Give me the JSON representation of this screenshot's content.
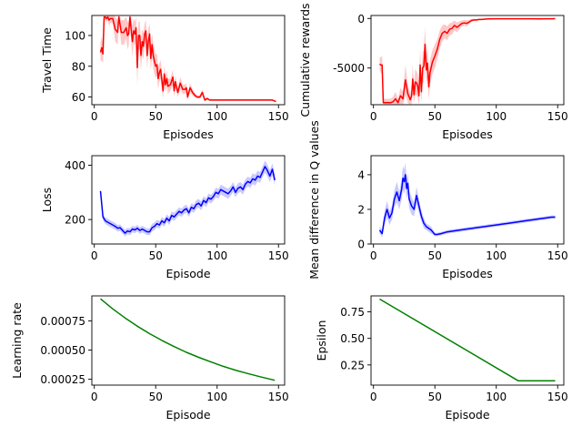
{
  "chart_data": [
    {
      "type": "line",
      "xlabel": "Episodes",
      "ylabel": "Travel Time",
      "xlim": [
        -2,
        155
      ],
      "ylim": [
        55,
        113
      ],
      "xticks": [
        0,
        50,
        100,
        150
      ],
      "yticks": [
        60,
        80,
        100
      ],
      "color": "#ff0000",
      "band_color": "#ffb6b6",
      "series": [
        {
          "x": [
            5,
            6,
            7,
            8,
            9,
            10,
            11,
            12,
            13,
            15,
            17,
            19,
            20,
            22,
            24,
            26,
            27,
            28,
            29,
            30,
            31,
            32,
            33,
            34,
            35,
            36,
            37,
            38,
            39,
            40,
            41,
            42,
            43,
            44,
            45,
            46,
            47,
            48,
            49,
            50,
            51,
            52,
            53,
            54,
            55,
            56,
            57,
            58,
            59,
            60,
            62,
            64,
            65,
            66,
            68,
            70,
            72,
            74,
            75,
            76,
            78,
            80,
            82,
            84,
            86,
            88,
            90,
            92,
            94,
            96,
            98,
            100,
            105,
            110,
            115,
            120,
            125,
            130,
            135,
            140,
            145,
            148
          ],
          "y": [
            89,
            92,
            88,
            112,
            112,
            111,
            112,
            110,
            111,
            111,
            104,
            102,
            112,
            102,
            102,
            105,
            100,
            101,
            112,
            104,
            96,
            103,
            101,
            105,
            79,
            100,
            100,
            87,
            96,
            93,
            101,
            103,
            87,
            96,
            101,
            85,
            94,
            87,
            83,
            80,
            81,
            72,
            76,
            78,
            71,
            64,
            75,
            68,
            72,
            67,
            68,
            73,
            64,
            70,
            63,
            69,
            65,
            65,
            66,
            60,
            66,
            63,
            61,
            60,
            60,
            63,
            58,
            59,
            58,
            58,
            58,
            58,
            58,
            58,
            58,
            58,
            58,
            58,
            58,
            58,
            58,
            57
          ],
          "spread": [
            6,
            8,
            6,
            2,
            2,
            2,
            2,
            4,
            3,
            3,
            8,
            8,
            2,
            8,
            8,
            7,
            9,
            8,
            2,
            8,
            10,
            8,
            8,
            7,
            12,
            9,
            9,
            10,
            8,
            9,
            7,
            7,
            9,
            8,
            7,
            8,
            7,
            8,
            8,
            8,
            7,
            7,
            6,
            6,
            6,
            5,
            6,
            5,
            5,
            5,
            4,
            5,
            4,
            4,
            3,
            4,
            3,
            3,
            3,
            2,
            3,
            2,
            1.5,
            1,
            1,
            2,
            1,
            1,
            0.5,
            0.5,
            0.5,
            0.5,
            0.5,
            0.5,
            0.5,
            0.5,
            0.5,
            0.5,
            0.5,
            0.5,
            0.5,
            0.5
          ]
        }
      ]
    },
    {
      "type": "line",
      "xlabel": "Episodes",
      "ylabel": "Cumulative rewards",
      "xlim": [
        -2,
        155
      ],
      "ylim": [
        -8700,
        300
      ],
      "xticks": [
        0,
        50,
        100,
        150
      ],
      "yticks": [
        -5000,
        0
      ],
      "color": "#ff0000",
      "band_color": "#ffb6b6",
      "series": [
        {
          "x": [
            5,
            6,
            7,
            8,
            9,
            10,
            12,
            14,
            16,
            18,
            20,
            22,
            24,
            26,
            28,
            30,
            31,
            32,
            33,
            34,
            35,
            36,
            37,
            38,
            39,
            40,
            41,
            42,
            43,
            44,
            45,
            46,
            48,
            50,
            52,
            54,
            56,
            58,
            60,
            62,
            64,
            66,
            68,
            70,
            72,
            74,
            76,
            78,
            80,
            82,
            84,
            86,
            88,
            90,
            92,
            94,
            96,
            98,
            100,
            105,
            110,
            115,
            120,
            125,
            130,
            135,
            140,
            145,
            148
          ],
          "y": [
            -4600,
            -4700,
            -4700,
            -8500,
            -8500,
            -8500,
            -8500,
            -8500,
            -8400,
            -8100,
            -8500,
            -7800,
            -8100,
            -6200,
            -7600,
            -8200,
            -7800,
            -6100,
            -7700,
            -6400,
            -6500,
            -6800,
            -7800,
            -4700,
            -7400,
            -5000,
            -4800,
            -2600,
            -5200,
            -4500,
            -6900,
            -5500,
            -4400,
            -3800,
            -3100,
            -2100,
            -1500,
            -1300,
            -1500,
            -1100,
            -1000,
            -700,
            -900,
            -700,
            -500,
            -450,
            -500,
            -350,
            -200,
            -150,
            -150,
            -100,
            -100,
            -80,
            -60,
            -40,
            -40,
            -30,
            -30,
            -30,
            -30,
            -30,
            -30,
            -30,
            -30,
            -40,
            -30,
            -30,
            -20
          ],
          "spread": [
            600,
            800,
            900,
            400,
            400,
            400,
            400,
            400,
            500,
            700,
            400,
            800,
            700,
            1500,
            900,
            600,
            800,
            1500,
            800,
            1300,
            1200,
            1200,
            900,
            1700,
            1100,
            1600,
            1600,
            1800,
            1500,
            1500,
            1300,
            1300,
            1200,
            1200,
            1000,
            900,
            800,
            700,
            700,
            600,
            600,
            500,
            500,
            400,
            300,
            300,
            300,
            200,
            150,
            100,
            100,
            80,
            80,
            60,
            50,
            40,
            40,
            30,
            20,
            20,
            20,
            20,
            20,
            20,
            20,
            20,
            20,
            20,
            20
          ]
        }
      ]
    },
    {
      "type": "line",
      "xlabel": "Episode",
      "ylabel": "Loss",
      "xlim": [
        -2,
        155
      ],
      "ylim": [
        110,
        435
      ],
      "xticks": [
        0,
        50,
        100,
        150
      ],
      "yticks": [
        200,
        400
      ],
      "color": "#0000ff",
      "band_color": "#b8b8ff",
      "series": [
        {
          "x": [
            5,
            7,
            9,
            11,
            13,
            15,
            17,
            19,
            21,
            23,
            25,
            27,
            29,
            31,
            33,
            35,
            37,
            39,
            41,
            43,
            45,
            47,
            49,
            51,
            53,
            55,
            57,
            59,
            61,
            63,
            65,
            67,
            69,
            71,
            73,
            75,
            77,
            79,
            81,
            83,
            85,
            87,
            89,
            91,
            93,
            95,
            97,
            99,
            101,
            103,
            105,
            107,
            109,
            111,
            113,
            115,
            117,
            119,
            121,
            123,
            125,
            127,
            129,
            131,
            133,
            135,
            137,
            139,
            141,
            143,
            145,
            147
          ],
          "y": [
            305,
            210,
            195,
            190,
            185,
            180,
            175,
            168,
            170,
            160,
            150,
            158,
            155,
            165,
            162,
            168,
            160,
            165,
            160,
            155,
            155,
            170,
            175,
            185,
            180,
            195,
            188,
            205,
            195,
            215,
            210,
            220,
            230,
            225,
            235,
            240,
            225,
            245,
            240,
            255,
            260,
            250,
            270,
            262,
            280,
            275,
            285,
            300,
            295,
            310,
            305,
            300,
            295,
            305,
            320,
            300,
            315,
            320,
            310,
            330,
            340,
            335,
            350,
            345,
            360,
            355,
            375,
            395,
            380,
            360,
            385,
            345
          ],
          "spread": [
            8,
            12,
            12,
            12,
            12,
            12,
            12,
            12,
            12,
            12,
            12,
            12,
            12,
            12,
            12,
            12,
            12,
            12,
            12,
            12,
            12,
            14,
            14,
            14,
            14,
            14,
            14,
            14,
            15,
            15,
            15,
            15,
            15,
            15,
            15,
            15,
            15,
            15,
            15,
            16,
            16,
            16,
            16,
            16,
            16,
            16,
            16,
            18,
            18,
            18,
            18,
            18,
            18,
            18,
            18,
            18,
            18,
            18,
            18,
            18,
            18,
            18,
            20,
            20,
            20,
            20,
            20,
            22,
            22,
            22,
            22,
            20
          ]
        }
      ]
    },
    {
      "type": "line",
      "xlabel": "Episodes",
      "ylabel": "Mean difference in Q values",
      "xlim": [
        -2,
        155
      ],
      "ylim": [
        0,
        5.1
      ],
      "xticks": [
        0,
        50,
        100,
        150
      ],
      "yticks": [
        0,
        2,
        4
      ],
      "color": "#0000ff",
      "band_color": "#b8b8ff",
      "series": [
        {
          "x": [
            5,
            7,
            9,
            11,
            13,
            15,
            17,
            19,
            21,
            23,
            24,
            25,
            26,
            27,
            28,
            29,
            31,
            33,
            35,
            37,
            39,
            41,
            43,
            45,
            47,
            50,
            52,
            55,
            60,
            65,
            70,
            75,
            80,
            85,
            90,
            95,
            100,
            105,
            110,
            115,
            120,
            125,
            130,
            135,
            140,
            145,
            148
          ],
          "y": [
            0.8,
            0.6,
            1.5,
            2.0,
            1.5,
            1.8,
            2.6,
            3.0,
            2.5,
            3.2,
            3.8,
            3.6,
            4.0,
            3.2,
            3.5,
            2.6,
            2.2,
            2.0,
            2.8,
            2.2,
            1.6,
            1.2,
            1.0,
            0.9,
            0.8,
            0.55,
            0.55,
            0.6,
            0.7,
            0.75,
            0.8,
            0.85,
            0.9,
            0.95,
            1.0,
            1.05,
            1.1,
            1.15,
            1.2,
            1.25,
            1.3,
            1.35,
            1.4,
            1.45,
            1.5,
            1.55,
            1.55
          ],
          "spread": [
            0.2,
            0.2,
            0.4,
            0.5,
            0.4,
            0.4,
            0.5,
            0.6,
            0.5,
            0.6,
            0.7,
            0.7,
            0.7,
            0.6,
            0.6,
            0.5,
            0.5,
            0.4,
            0.5,
            0.4,
            0.3,
            0.3,
            0.2,
            0.2,
            0.2,
            0.1,
            0.1,
            0.1,
            0.1,
            0.1,
            0.1,
            0.1,
            0.1,
            0.1,
            0.1,
            0.1,
            0.1,
            0.1,
            0.1,
            0.1,
            0.1,
            0.1,
            0.1,
            0.1,
            0.1,
            0.1,
            0.1
          ]
        }
      ]
    },
    {
      "type": "line",
      "xlabel": "Episode",
      "ylabel": "Learning rate",
      "xlim": [
        -2,
        155
      ],
      "ylim": [
        0.0002,
        0.000965
      ],
      "xticks": [
        0,
        50,
        100,
        150
      ],
      "yticks": [
        0.00025,
        0.0005,
        0.00075
      ],
      "ytick_labels": [
        "0.00025",
        "0.00050",
        "0.00075"
      ],
      "color": "#008000",
      "series": [
        {
          "x": [
            5,
            15,
            25,
            35,
            45,
            55,
            65,
            75,
            85,
            95,
            105,
            115,
            125,
            135,
            147
          ],
          "y": [
            0.00094,
            0.000853,
            0.000776,
            0.000705,
            0.000641,
            0.000583,
            0.00053,
            0.000481,
            0.000438,
            0.000398,
            0.000361,
            0.000328,
            0.000299,
            0.000272,
            0.000241
          ]
        }
      ]
    },
    {
      "type": "line",
      "xlabel": "Episode",
      "ylabel": "Epsilon",
      "xlim": [
        -2,
        155
      ],
      "ylim": [
        0.06,
        0.9
      ],
      "xticks": [
        0,
        50,
        100,
        150
      ],
      "yticks": [
        0.25,
        0.5,
        0.75
      ],
      "ytick_labels": [
        "0.25",
        "0.50",
        "0.75"
      ],
      "color": "#008000",
      "series": [
        {
          "x": [
            5,
            118,
            148
          ],
          "y": [
            0.87,
            0.1,
            0.1
          ]
        }
      ]
    }
  ]
}
